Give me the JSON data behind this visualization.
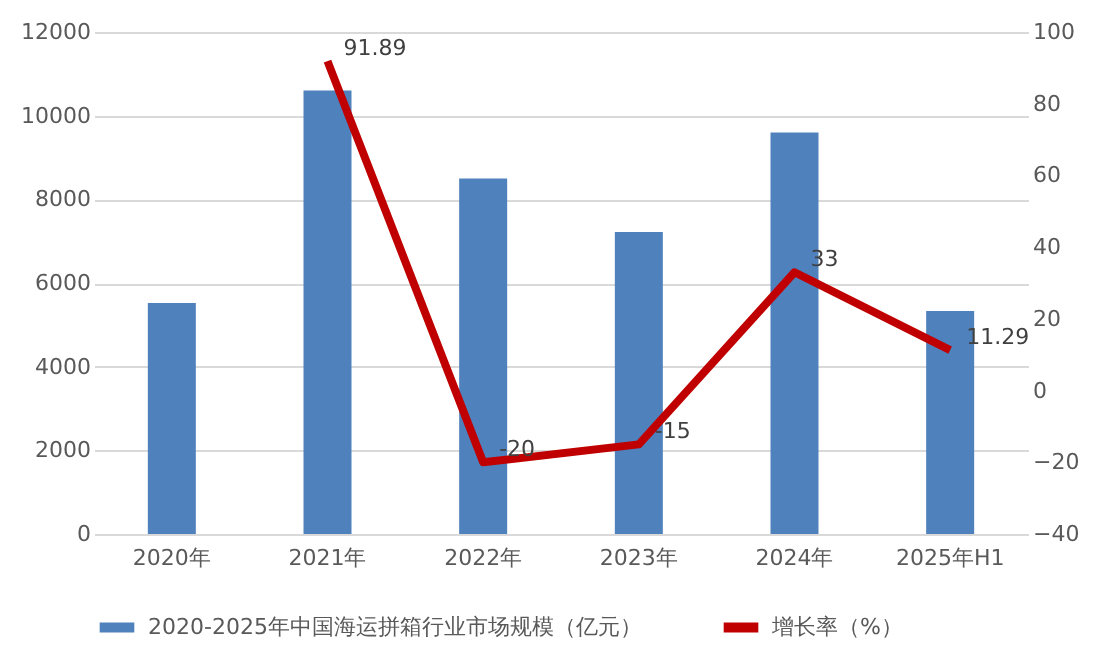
{
  "chart_data": {
    "type": "bar",
    "categories": [
      "2020年",
      "2021年",
      "2022年",
      "2023年",
      "2024年",
      "2025年H1"
    ],
    "series": [
      {
        "name": "2020-2025年中国海运拼箱行业市场规模（亿元）",
        "color": "#4f81bd",
        "values": [
          5520,
          10600,
          8500,
          7220,
          9600,
          5330
        ]
      },
      {
        "name": "增长率（%）",
        "type": "line",
        "axis": "y2",
        "color": "#c00000",
        "values": [
          null,
          91.89,
          -20,
          -15,
          33,
          11.29
        ],
        "value_labels": [
          null,
          "91.89",
          "-20",
          "-15",
          "33",
          "11.29"
        ]
      }
    ],
    "ylim": [
      0,
      12000
    ],
    "yticks": [
      0,
      2000,
      4000,
      6000,
      8000,
      10000,
      12000
    ],
    "y2lim": [
      -40,
      100
    ],
    "y2ticks": [
      -40,
      -20,
      0,
      20,
      40,
      60,
      80,
      100
    ],
    "grid": "y",
    "legend": "bottom",
    "marker": "none",
    "line_style": "solid"
  }
}
